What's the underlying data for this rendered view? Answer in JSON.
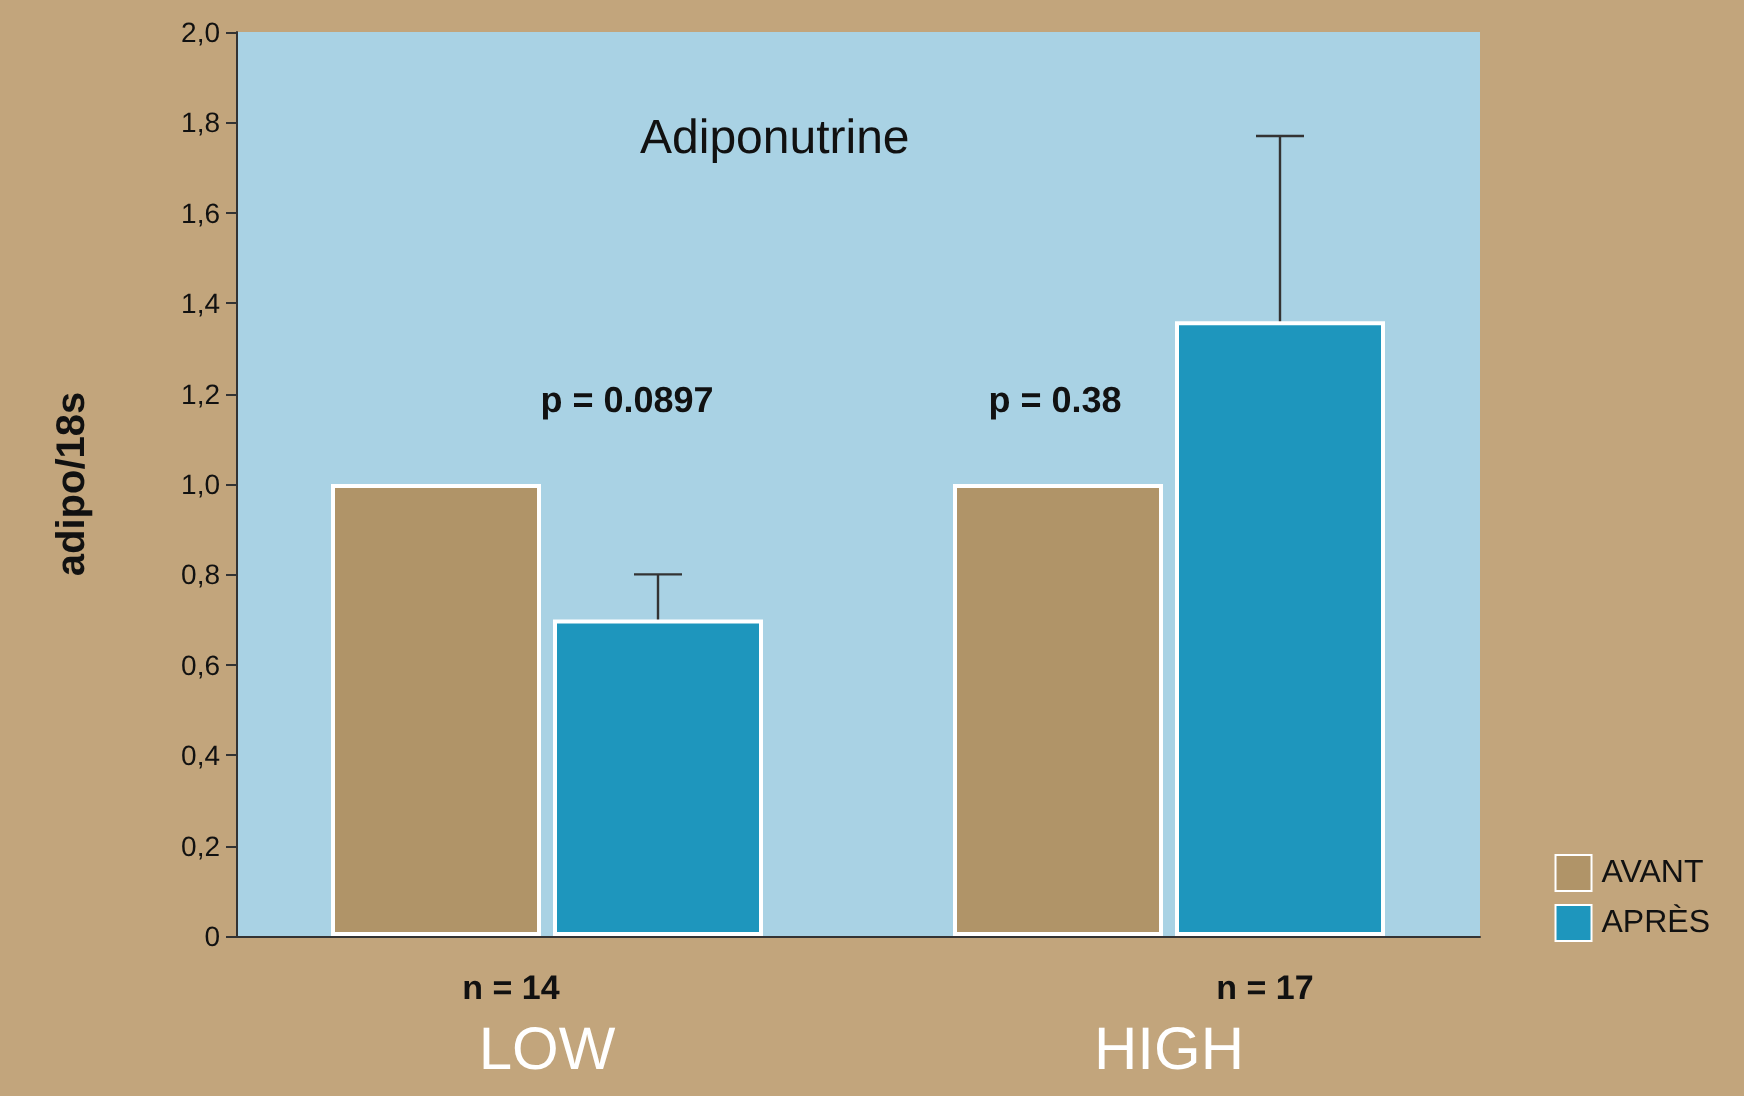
{
  "chart_data": {
    "type": "bar",
    "title": "Adiponutrine",
    "ylabel": "adipo/18s",
    "categories": [
      "LOW",
      "HIGH"
    ],
    "series": [
      {
        "name": "AVANT",
        "color": "#b09468",
        "values": [
          1.0,
          1.0
        ]
      },
      {
        "name": "APRÈS",
        "color": "#1e96bd",
        "values": [
          0.7,
          1.36
        ],
        "errors": [
          0.1,
          0.41
        ]
      }
    ],
    "ylim": [
      0,
      2
    ],
    "yticks": [
      0,
      {
        "value": 0.2,
        "label": "0,2"
      },
      {
        "value": 0.4,
        "label": "0,4"
      },
      {
        "value": 0.6,
        "label": "0,6"
      },
      {
        "value": 0.8,
        "label": "0,8"
      },
      {
        "value": 1.0,
        "label": "1,0"
      },
      {
        "value": 1.2,
        "label": "1,2"
      },
      {
        "value": 1.4,
        "label": "1,4"
      },
      {
        "value": 1.6,
        "label": "1,6"
      },
      {
        "value": 1.8,
        "label": "1,8"
      },
      {
        "value": 2.0,
        "label": "2,0"
      }
    ],
    "annotations": [
      "p = 0.0897",
      "p = 0.38",
      "n = 14",
      "n = 17"
    ],
    "legend": "bottom right"
  }
}
